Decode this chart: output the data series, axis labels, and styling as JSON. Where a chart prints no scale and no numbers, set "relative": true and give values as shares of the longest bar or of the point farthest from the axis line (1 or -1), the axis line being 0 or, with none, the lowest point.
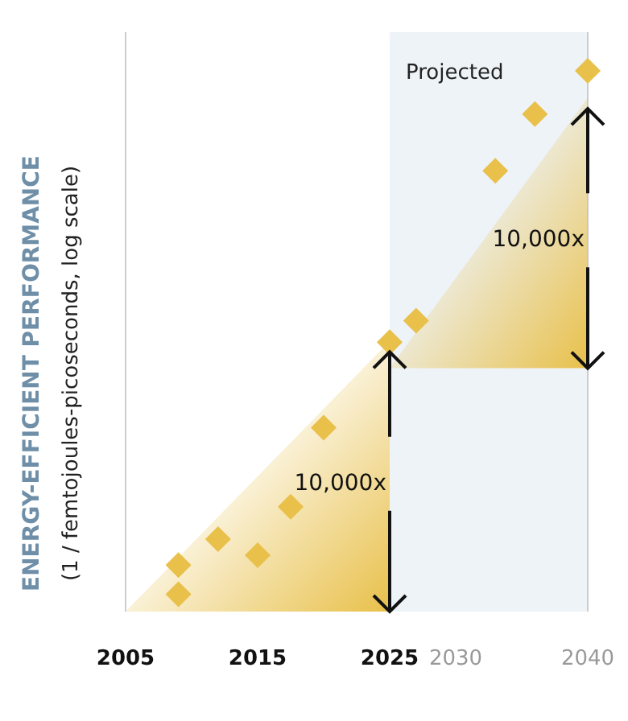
{
  "chart_data": {
    "type": "scatter",
    "ylabel": "ENERGY-EFFICIENT PERFORMANCE\n(1 / femtojoules-picoseconds, log scale)",
    "relative": true,
    "marker": "diamond",
    "x": [
      2009,
      2009,
      2012,
      2015,
      2017.5,
      2020,
      2025,
      2027,
      2033,
      2036,
      2040
    ],
    "xlim": [
      2005,
      2040
    ],
    "xticks": [
      2005,
      2015,
      2025,
      2030,
      2040
    ],
    "series": [
      {
        "color": "#e8c04a",
        "values": [
          0.032,
          0.086,
          0.134,
          0.104,
          0.194,
          0.34,
          0.498,
          0.538,
          0.815,
          0.92,
          1
        ]
      }
    ],
    "bands": [
      {
        "axis": "x",
        "from": 2025,
        "to": 2040,
        "label": "Projected",
        "color": "#eef3f8"
      }
    ],
    "annotations": [
      {
        "text": "10,000x",
        "x": 2025,
        "y": 0.24
      },
      {
        "text": "10,000x",
        "x": 2040,
        "y": 0.69
      }
    ]
  }
}
